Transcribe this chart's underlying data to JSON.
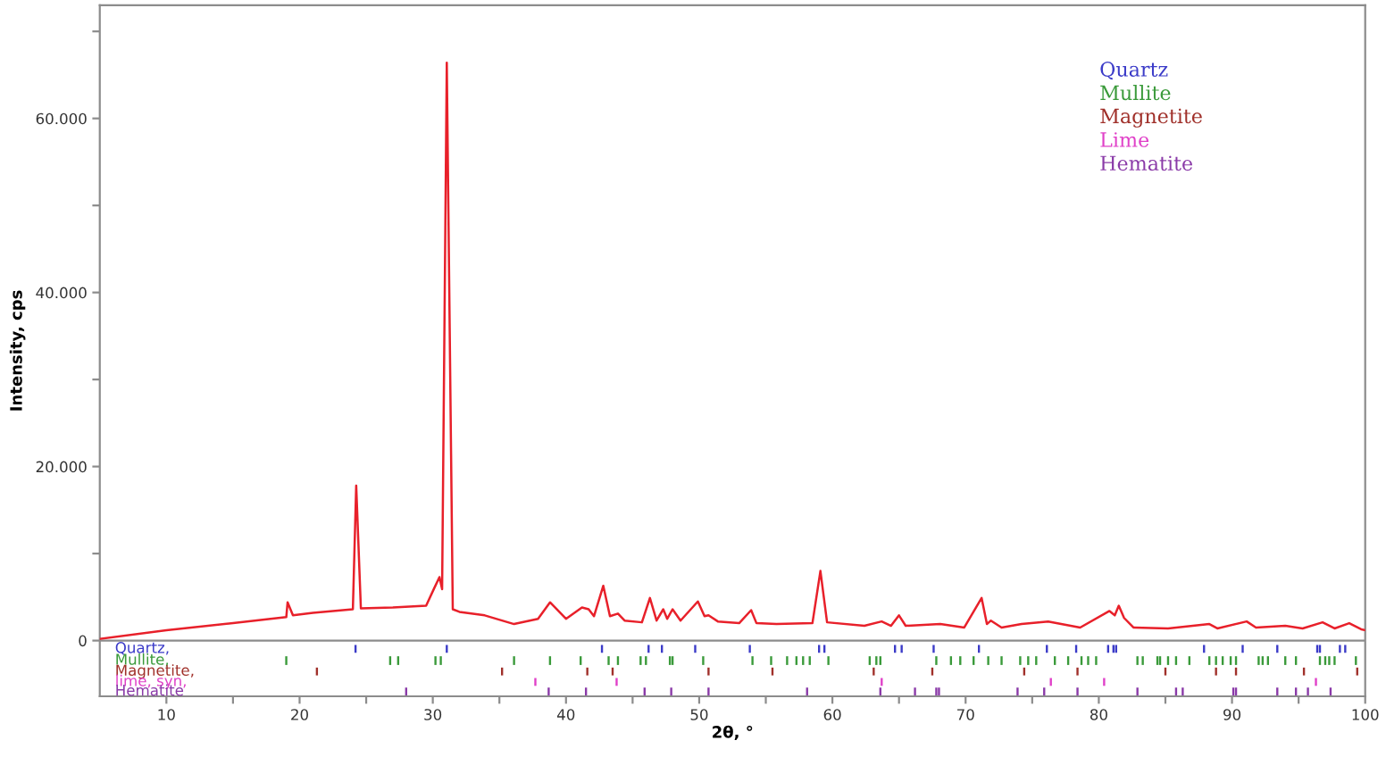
{
  "chart_data": {
    "type": "line",
    "ylabel": "Intensity, cps",
    "xlabel": "2θ, °",
    "xlim": [
      5,
      100
    ],
    "ylim": [
      -6400,
      73000
    ],
    "grid": false,
    "marker": "none",
    "line_style": "solid",
    "xticks": [
      10,
      {
        "value": 15,
        "label": null
      },
      20,
      {
        "value": 25,
        "label": null
      },
      30,
      {
        "value": 35,
        "label": null
      },
      40,
      {
        "value": 45,
        "label": null
      },
      50,
      {
        "value": 55,
        "label": null
      },
      60,
      {
        "value": 65,
        "label": null
      },
      70,
      {
        "value": 75,
        "label": null
      },
      80,
      {
        "value": 85,
        "label": null
      },
      90,
      {
        "value": 95,
        "label": null
      },
      100
    ],
    "yticks": [
      0,
      {
        "value": 10000,
        "label": null
      },
      {
        "value": 20000,
        "label": "20.000"
      },
      {
        "value": 30000,
        "label": null
      },
      {
        "value": 40000,
        "label": "40.000"
      },
      {
        "value": 50000,
        "label": null
      },
      {
        "value": 60000,
        "label": "60.000"
      },
      {
        "value": 70000,
        "label": null
      }
    ],
    "ref_lines": [
      {
        "axis": "y",
        "value": 0,
        "color": "#8c8c8c"
      }
    ],
    "annotations": [
      "Quartz,",
      "Mullite,",
      "Magnetite,",
      "lime, syn,",
      "Hematite"
    ],
    "series": [
      {
        "color": "#e8202a",
        "x": [
          5,
          10,
          15,
          19,
          19.1,
          19.5,
          21,
          24,
          24.25,
          24.6,
          27,
          29.5,
          30.1,
          30.5,
          30.7,
          31.05,
          31.5,
          32,
          33.9,
          36.1,
          37.9,
          38.8,
          40,
          41.2,
          41.7,
          42.1,
          42.8,
          43.3,
          43.9,
          44.4,
          45.7,
          46.3,
          46.8,
          47.3,
          47.6,
          48.0,
          48.6,
          49.9,
          50.4,
          50.7,
          51.4,
          53.0,
          53.9,
          54.3,
          55.8,
          58.5,
          59.1,
          59.6,
          62.4,
          63.7,
          64.4,
          65.0,
          65.5,
          68.1,
          69.9,
          71.2,
          71.6,
          71.9,
          72.7,
          74.2,
          76.2,
          78.6,
          80.8,
          81.2,
          81.5,
          81.9,
          82.6,
          85.2,
          88.3,
          88.9,
          91.1,
          91.8,
          94.0,
          95.3,
          96.8,
          97.7,
          98.8,
          99.7,
          100
        ],
        "values": [
          200,
          1200,
          2000,
          2700,
          4400,
          2900,
          3200,
          3600,
          17800,
          3700,
          3800,
          4000,
          6000,
          7300,
          5900,
          66400,
          3600,
          3300,
          2900,
          1900,
          2500,
          4400,
          2500,
          3800,
          3600,
          2800,
          6300,
          2800,
          3100,
          2300,
          2100,
          4900,
          2300,
          3600,
          2500,
          3600,
          2300,
          4500,
          2800,
          2900,
          2200,
          2000,
          3500,
          2000,
          1900,
          2000,
          8000,
          2100,
          1700,
          2200,
          1700,
          2900,
          1700,
          1900,
          1500,
          4900,
          1900,
          2300,
          1500,
          1900,
          2200,
          1500,
          3400,
          2900,
          4000,
          2600,
          1500,
          1400,
          1900,
          1400,
          2200,
          1500,
          1700,
          1400,
          2100,
          1400,
          2000,
          1300,
          1200
        ]
      },
      {
        "type": "bar",
        "name": "Quartz",
        "color": "#3b3bc8",
        "x": [
          24.2,
          31.05,
          42.7,
          46.2,
          47.2,
          49.7,
          53.8,
          59.0,
          59.4,
          64.7,
          65.2,
          67.6,
          71.0,
          76.1,
          78.3,
          80.7,
          81.1,
          81.3,
          87.9,
          90.8,
          93.4,
          96.4,
          96.6,
          98.1,
          98.5
        ],
        "base": [
          -1400,
          -1400,
          -1400,
          -1400,
          -1400,
          -1400,
          -1400,
          -1400,
          -1400,
          -1400,
          -1400,
          -1400,
          -1400,
          -1400,
          -1400,
          -1400,
          -1400,
          -1400,
          -1400,
          -1400,
          -1400,
          -1400,
          -1400,
          -1400,
          -1400
        ],
        "values": [
          900,
          900,
          900,
          900,
          900,
          900,
          900,
          900,
          900,
          900,
          900,
          900,
          900,
          900,
          900,
          900,
          900,
          900,
          900,
          900,
          900,
          900,
          900,
          900,
          900
        ]
      },
      {
        "type": "bar",
        "name": "Mullite",
        "color": "#3a9a3a",
        "x": [
          19.0,
          26.8,
          27.4,
          30.2,
          30.6,
          36.1,
          38.8,
          41.1,
          43.2,
          43.9,
          45.6,
          46.0,
          47.8,
          48.0,
          50.3,
          54.0,
          55.4,
          56.6,
          57.3,
          57.8,
          58.3,
          59.7,
          62.8,
          63.3,
          63.6,
          67.8,
          68.9,
          69.6,
          70.6,
          71.7,
          72.7,
          74.1,
          74.7,
          75.3,
          76.7,
          77.7,
          78.7,
          79.2,
          79.8,
          82.9,
          83.3,
          84.4,
          84.6,
          85.2,
          85.8,
          86.8,
          88.3,
          88.8,
          89.3,
          89.9,
          90.3,
          92.0,
          92.3,
          92.7,
          94.0,
          94.8,
          96.6,
          97.0,
          97.3,
          97.7,
          99.3
        ],
        "base": [
          -2800,
          -2800,
          -2800,
          -2800,
          -2800,
          -2800,
          -2800,
          -2800,
          -2800,
          -2800,
          -2800,
          -2800,
          -2800,
          -2800,
          -2800,
          -2800,
          -2800,
          -2800,
          -2800,
          -2800,
          -2800,
          -2800,
          -2800,
          -2800,
          -2800,
          -2800,
          -2800,
          -2800,
          -2800,
          -2800,
          -2800,
          -2800,
          -2800,
          -2800,
          -2800,
          -2800,
          -2800,
          -2800,
          -2800,
          -2800,
          -2800,
          -2800,
          -2800,
          -2800,
          -2800,
          -2800,
          -2800,
          -2800,
          -2800,
          -2800,
          -2800,
          -2800,
          -2800,
          -2800,
          -2800,
          -2800,
          -2800,
          -2800,
          -2800,
          -2800,
          -2800
        ],
        "values": [
          1000,
          1000,
          1000,
          1000,
          1000,
          1000,
          1000,
          1000,
          1000,
          1000,
          1000,
          1000,
          1000,
          1000,
          1000,
          1000,
          1000,
          1000,
          1000,
          1000,
          1000,
          1000,
          1000,
          1000,
          1000,
          1000,
          1000,
          1000,
          1000,
          1000,
          1000,
          1000,
          1000,
          1000,
          1000,
          1000,
          1000,
          1000,
          1000,
          1000,
          1000,
          1000,
          1000,
          1000,
          1000,
          1000,
          1000,
          1000,
          1000,
          1000,
          1000,
          1000,
          1000,
          1000,
          1000,
          1000,
          1000,
          1000,
          1000,
          1000,
          1000
        ]
      },
      {
        "type": "bar",
        "name": "Magnetite",
        "color": "#a0302a",
        "x": [
          21.3,
          35.2,
          41.6,
          43.5,
          50.7,
          55.5,
          63.1,
          67.5,
          74.4,
          78.4,
          85.0,
          88.8,
          90.3,
          95.4,
          99.4
        ],
        "base": [
          -4000,
          -4000,
          -4000,
          -4000,
          -4000,
          -4000,
          -4000,
          -4000,
          -4000,
          -4000,
          -4000,
          -4000,
          -4000,
          -4000,
          -4000
        ],
        "values": [
          900,
          900,
          900,
          900,
          900,
          900,
          900,
          900,
          900,
          900,
          900,
          900,
          900,
          900,
          900
        ]
      },
      {
        "type": "bar",
        "name": "Lime",
        "color": "#e040c8",
        "x": [
          37.7,
          43.8,
          63.7,
          76.4,
          80.4,
          96.3
        ],
        "base": [
          -5200,
          -5200,
          -5200,
          -5200,
          -5200,
          -5200
        ],
        "values": [
          900,
          900,
          900,
          900,
          900,
          900
        ]
      },
      {
        "type": "bar",
        "name": "Hematite",
        "color": "#8a3aa8",
        "x": [
          28.0,
          38.7,
          41.5,
          45.9,
          47.9,
          50.7,
          58.1,
          63.6,
          66.2,
          67.8,
          68.0,
          73.9,
          75.9,
          78.4,
          82.9,
          85.8,
          86.3,
          90.1,
          90.3,
          93.4,
          94.8,
          95.7,
          97.4
        ],
        "base": [
          -6300,
          -6300,
          -6300,
          -6300,
          -6300,
          -6300,
          -6300,
          -6300,
          -6300,
          -6300,
          -6300,
          -6300,
          -6300,
          -6300,
          -6300,
          -6300,
          -6300,
          -6300,
          -6300,
          -6300,
          -6300,
          -6300,
          -6300
        ],
        "values": [
          900,
          900,
          900,
          900,
          900,
          900,
          900,
          900,
          900,
          900,
          900,
          900,
          900,
          900,
          900,
          900,
          900,
          900,
          900,
          900,
          900,
          900,
          900
        ]
      }
    ]
  }
}
